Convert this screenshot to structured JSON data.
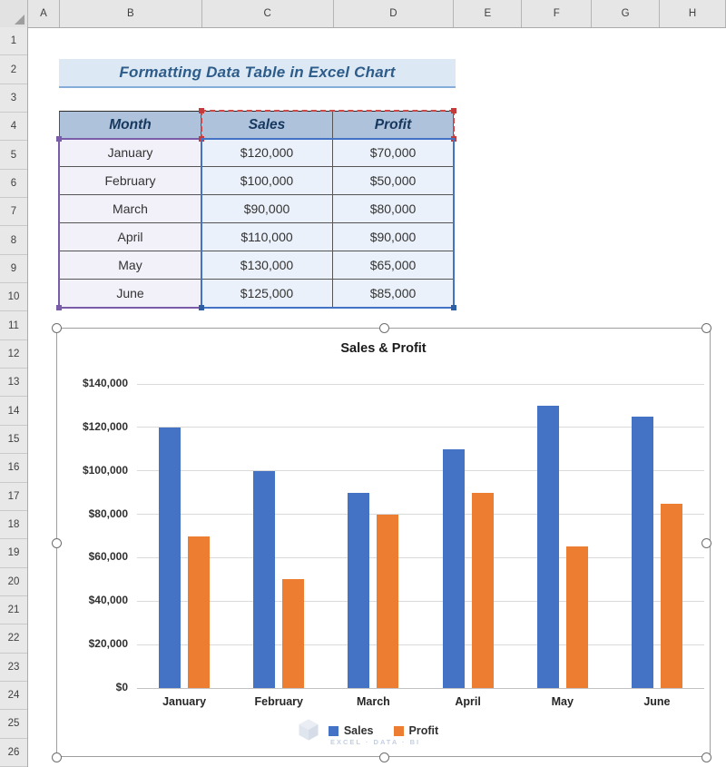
{
  "spreadsheet": {
    "column_headers": [
      "A",
      "B",
      "C",
      "D",
      "E",
      "F",
      "G",
      "H"
    ],
    "row_headers": [
      "1",
      "2",
      "3",
      "4",
      "5",
      "6",
      "7",
      "8",
      "9",
      "10",
      "11",
      "12",
      "13",
      "14",
      "15",
      "16",
      "17",
      "18",
      "19",
      "20",
      "21",
      "22",
      "23",
      "24",
      "25",
      "26"
    ]
  },
  "banner": {
    "text": "Formatting Data Table in Excel Chart"
  },
  "data_table": {
    "headers": [
      "Month",
      "Sales",
      "Profit"
    ],
    "rows": [
      [
        "January",
        "$120,000",
        "$70,000"
      ],
      [
        "February",
        "$100,000",
        "$50,000"
      ],
      [
        "March",
        "$90,000",
        "$80,000"
      ],
      [
        "April",
        "$110,000",
        "$90,000"
      ],
      [
        "May",
        "$130,000",
        "$65,000"
      ],
      [
        "June",
        "$125,000",
        "$85,000"
      ]
    ]
  },
  "chart_data": {
    "type": "bar",
    "title": "Sales & Profit",
    "categories": [
      "January",
      "February",
      "March",
      "April",
      "May",
      "June"
    ],
    "series": [
      {
        "name": "Sales",
        "color": "#4472C4",
        "values": [
          120000,
          100000,
          90000,
          110000,
          130000,
          125000
        ]
      },
      {
        "name": "Profit",
        "color": "#ED7D31",
        "values": [
          70000,
          50000,
          80000,
          90000,
          65000,
          85000
        ]
      }
    ],
    "ylim": [
      0,
      140000
    ],
    "y_tick_step": 20000,
    "y_tick_labels": [
      "$0",
      "$20,000",
      "$40,000",
      "$60,000",
      "$80,000",
      "$100,000",
      "$120,000",
      "$140,000"
    ],
    "grid": true,
    "legend_position": "bottom"
  },
  "watermark": {
    "tagline": "EXCEL · DATA · BI"
  },
  "colors": {
    "selection_categories": "#7a5ca8",
    "selection_series_names": "#cf4747",
    "selection_values": "#4472c4",
    "table_header_fill": "#aec2dc",
    "banner_fill": "#dce9f5"
  }
}
